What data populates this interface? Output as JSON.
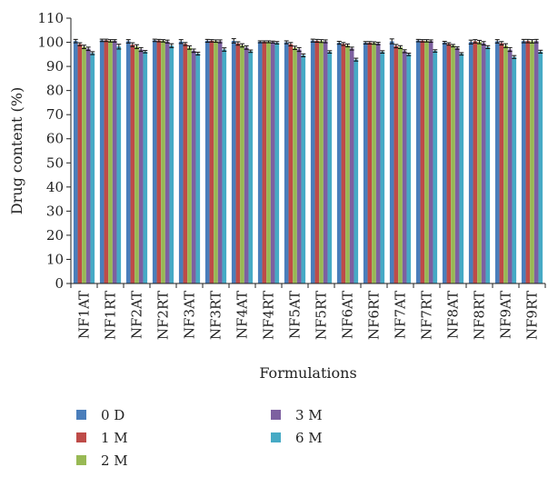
{
  "chart_data": {
    "type": "bar",
    "title": "",
    "xlabel": "Formulations",
    "ylabel": "Drug content (%)",
    "ylim": [
      0,
      110
    ],
    "yticks": [
      0,
      10,
      20,
      30,
      40,
      50,
      60,
      70,
      80,
      90,
      100,
      110
    ],
    "grid": false,
    "legend_position": "bottom",
    "categories": [
      "NF1AT",
      "NF1RT",
      "NF2AT",
      "NF2RT",
      "NF3AT",
      "NF3RT",
      "NF4AT",
      "NF4RT",
      "NF5AT",
      "NF5RT",
      "NF6AT",
      "NF6RT",
      "NF7AT",
      "NF7RT",
      "NF8AT",
      "NF8RT",
      "NF9AT",
      "NF9RT"
    ],
    "series": [
      {
        "name": "0 D",
        "color": "#4a7ebb",
        "values": [
          100.5,
          100.8,
          100.4,
          100.8,
          100.3,
          100.6,
          100.6,
          100.2,
          100.0,
          100.7,
          99.8,
          99.8,
          100.4,
          100.7,
          99.9,
          100.1,
          100.4,
          100.5
        ],
        "errors": [
          0.7,
          0.5,
          0.7,
          0.5,
          0.8,
          0.6,
          0.9,
          0.4,
          0.6,
          0.6,
          0.6,
          0.5,
          1.0,
          0.5,
          0.5,
          0.8,
          0.7,
          0.7
        ]
      },
      {
        "name": "1 M",
        "color": "#be4b48",
        "values": [
          99.2,
          100.8,
          99.0,
          100.7,
          99.3,
          100.6,
          99.5,
          100.2,
          99.2,
          100.6,
          99.3,
          99.8,
          98.4,
          100.6,
          99.3,
          100.4,
          99.6,
          100.5
        ],
        "errors": [
          0.6,
          0.5,
          0.8,
          0.5,
          0.6,
          0.5,
          0.7,
          0.4,
          0.7,
          0.6,
          0.6,
          0.5,
          0.7,
          0.5,
          0.5,
          0.7,
          0.7,
          0.7
        ]
      },
      {
        "name": "2 M",
        "color": "#98b954",
        "values": [
          98.1,
          100.6,
          98.2,
          100.6,
          97.8,
          100.5,
          98.7,
          100.2,
          97.7,
          100.5,
          98.7,
          99.7,
          98.0,
          100.6,
          98.6,
          100.1,
          98.6,
          100.4
        ],
        "errors": [
          0.7,
          0.5,
          0.8,
          0.5,
          0.7,
          0.5,
          0.7,
          0.4,
          0.7,
          0.6,
          0.6,
          0.5,
          0.6,
          0.5,
          0.5,
          0.7,
          0.8,
          0.7
        ]
      },
      {
        "name": "3 M",
        "color": "#7d60a0",
        "values": [
          97.3,
          100.6,
          97.0,
          100.3,
          96.5,
          100.4,
          97.8,
          100.1,
          97.0,
          100.4,
          97.4,
          99.5,
          96.3,
          100.5,
          97.6,
          99.6,
          97.0,
          100.5
        ],
        "errors": [
          0.7,
          0.5,
          0.8,
          0.6,
          0.7,
          0.6,
          0.7,
          0.4,
          0.8,
          0.6,
          0.6,
          0.5,
          0.6,
          0.5,
          0.5,
          0.7,
          0.8,
          0.7
        ]
      },
      {
        "name": "6 M",
        "color": "#46aac5",
        "values": [
          95.5,
          98.2,
          96.1,
          98.6,
          95.3,
          97.0,
          96.3,
          99.8,
          94.6,
          96.0,
          92.8,
          96.0,
          95.0,
          96.4,
          95.2,
          98.0,
          93.9,
          96.1
        ],
        "errors": [
          0.6,
          1.0,
          0.5,
          0.8,
          0.6,
          0.7,
          0.5,
          0.5,
          0.6,
          0.5,
          0.6,
          0.5,
          0.5,
          0.5,
          0.5,
          0.6,
          0.6,
          0.6
        ]
      }
    ]
  }
}
